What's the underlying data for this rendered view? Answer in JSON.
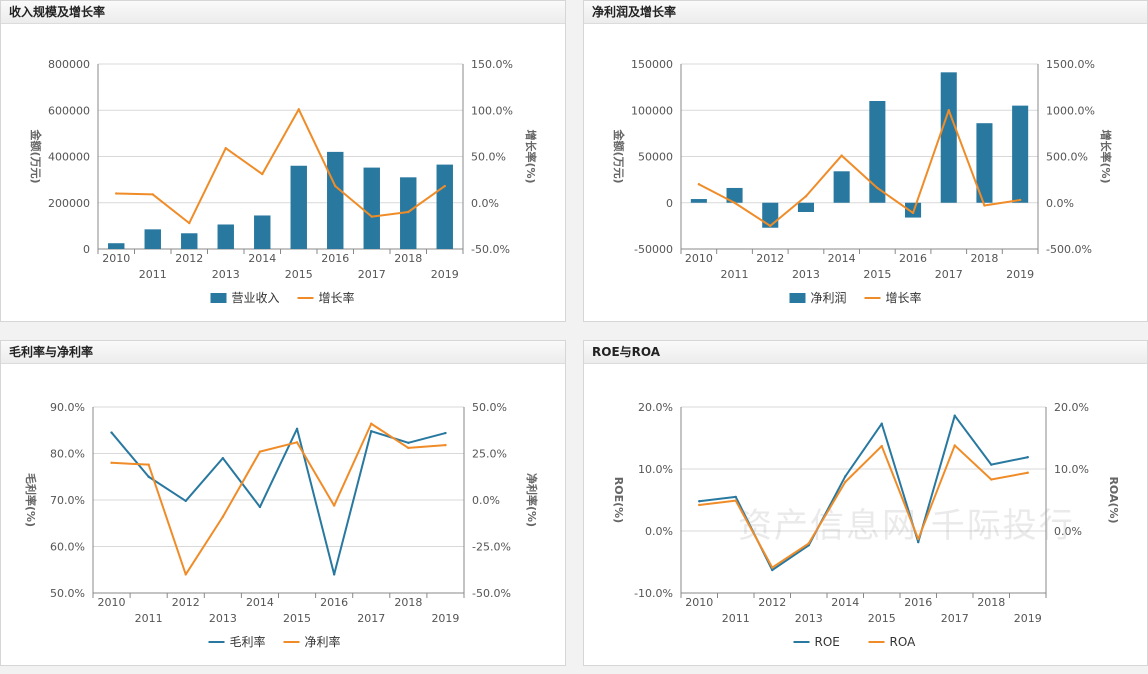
{
  "panels": [
    {
      "id": "revenue",
      "title": "收入规模及增长率"
    },
    {
      "id": "profit",
      "title": "净利润及增长率"
    },
    {
      "id": "margin",
      "title": "毛利率与净利率"
    },
    {
      "id": "roe",
      "title": "ROE与ROA"
    }
  ],
  "watermark": "资产信息网 千际投行",
  "colors": {
    "blue": "#2878a0",
    "orange": "#f08c28",
    "grid": "#d9d9d9",
    "axis": "#888888",
    "text": "#555555"
  },
  "chart_data": [
    {
      "type": "bar",
      "title": "收入规模及增长率",
      "categories": [
        "2010",
        "2011",
        "2012",
        "2013",
        "2014",
        "2015",
        "2016",
        "2017",
        "2018",
        "2019"
      ],
      "series": [
        {
          "name": "营业收入",
          "kind": "bar",
          "axis": "left",
          "values": [
            25000,
            85000,
            68000,
            106000,
            145000,
            360000,
            420000,
            352000,
            310000,
            365000
          ]
        },
        {
          "name": "增长率",
          "kind": "line",
          "axis": "right",
          "values": [
            10.0,
            9.0,
            -22.0,
            59.0,
            31.0,
            101.0,
            18.0,
            -15.0,
            -10.0,
            18.0
          ]
        }
      ],
      "left_axis": {
        "label": "金额(万元)",
        "min": 0,
        "max": 800000,
        "ticks": [
          0,
          200000,
          400000,
          600000,
          800000
        ],
        "tick_labels": [
          "0",
          "200000",
          "400000",
          "600000",
          "800000"
        ]
      },
      "right_axis": {
        "label": "增长率(%)",
        "min": -50,
        "max": 150,
        "ticks": [
          -50,
          0,
          50,
          100,
          150
        ],
        "tick_labels": [
          "-50.0%",
          "0.0%",
          "50.0%",
          "100.0%",
          "150.0%"
        ]
      },
      "legend": [
        "营业收入",
        "增长率"
      ]
    },
    {
      "type": "bar",
      "title": "净利润及增长率",
      "categories": [
        "2010",
        "2011",
        "2012",
        "2013",
        "2014",
        "2015",
        "2016",
        "2017",
        "2018",
        "2019"
      ],
      "series": [
        {
          "name": "净利润",
          "kind": "bar",
          "axis": "left",
          "values": [
            4000,
            16000,
            -27000,
            -10000,
            34000,
            110000,
            -16000,
            141000,
            86000,
            105000
          ]
        },
        {
          "name": "增长率",
          "kind": "line",
          "axis": "right",
          "values": [
            200,
            0,
            -250,
            70,
            510,
            160,
            -110,
            1000,
            -30,
            30
          ]
        }
      ],
      "left_axis": {
        "label": "金额(万元)",
        "min": -50000,
        "max": 150000,
        "ticks": [
          -50000,
          0,
          50000,
          100000,
          150000
        ],
        "tick_labels": [
          "-50000",
          "0",
          "50000",
          "100000",
          "150000"
        ]
      },
      "right_axis": {
        "label": "增长率(%)",
        "min": -500,
        "max": 1500,
        "ticks": [
          -500,
          0,
          500,
          1000,
          1500
        ],
        "tick_labels": [
          "-500.0%",
          "0.0%",
          "500.0%",
          "1000.0%",
          "1500.0%"
        ]
      },
      "legend": [
        "净利润",
        "增长率"
      ]
    },
    {
      "type": "line",
      "title": "毛利率与净利率",
      "categories": [
        "2010",
        "2011",
        "2012",
        "2013",
        "2014",
        "2015",
        "2016",
        "2017",
        "2018",
        "2019"
      ],
      "series": [
        {
          "name": "毛利率",
          "kind": "line",
          "axis": "left",
          "color": "blue",
          "values": [
            84.5,
            75.0,
            69.8,
            79.0,
            68.5,
            85.3,
            54.0,
            84.8,
            82.3,
            84.4
          ]
        },
        {
          "name": "净利率",
          "kind": "line",
          "axis": "right",
          "color": "orange",
          "values": [
            20.0,
            19.0,
            -40.0,
            -9.0,
            26.0,
            31.0,
            -3.0,
            41.0,
            28.0,
            29.5
          ]
        }
      ],
      "left_axis": {
        "label": "毛利率(%)",
        "min": 50,
        "max": 90,
        "ticks": [
          50,
          60,
          70,
          80,
          90
        ],
        "tick_labels": [
          "50.0%",
          "60.0%",
          "70.0%",
          "80.0%",
          "90.0%"
        ]
      },
      "right_axis": {
        "label": "净利率(%)",
        "min": -50,
        "max": 50,
        "ticks": [
          -50,
          -25,
          0,
          25,
          50
        ],
        "tick_labels": [
          "-50.0%",
          "-25.0%",
          "0.0%",
          "25.0%",
          "50.0%"
        ]
      },
      "legend": [
        "毛利率",
        "净利率"
      ]
    },
    {
      "type": "line",
      "title": "ROE与ROA",
      "categories": [
        "2010",
        "2011",
        "2012",
        "2013",
        "2014",
        "2015",
        "2016",
        "2017",
        "2018",
        "2019"
      ],
      "series": [
        {
          "name": "ROE",
          "kind": "line",
          "axis": "left",
          "color": "blue",
          "values": [
            4.8,
            5.5,
            -6.3,
            -2.3,
            8.8,
            17.3,
            -1.8,
            18.6,
            10.7,
            11.9
          ]
        },
        {
          "name": "ROA",
          "kind": "line",
          "axis": "right",
          "color": "orange",
          "values": [
            4.2,
            4.9,
            -5.9,
            -2.0,
            7.9,
            13.7,
            -1.3,
            13.8,
            8.3,
            9.4
          ]
        }
      ],
      "left_axis": {
        "label": "ROE(%)",
        "min": -10,
        "max": 20,
        "ticks": [
          -10,
          0,
          10,
          20
        ],
        "tick_labels": [
          "-10.0%",
          "0.0%",
          "10.0%",
          "20.0%"
        ]
      },
      "right_axis": {
        "label": "ROA(%)",
        "min": -10,
        "max": 20,
        "ticks": [
          -10,
          0,
          10,
          20
        ],
        "tick_labels": [
          "",
          "0.0%",
          "10.0%",
          "20.0%"
        ]
      },
      "legend": [
        "ROE",
        "ROA"
      ]
    }
  ]
}
